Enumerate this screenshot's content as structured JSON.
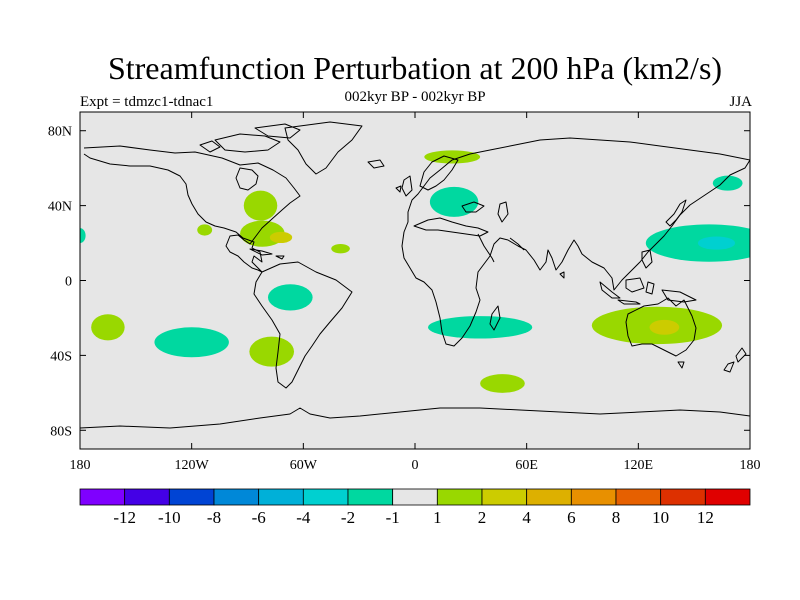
{
  "title": "Streamfunction Perturbation at 200 hPa (km2/s)",
  "subtitle": "002kyr BP - 002kyr BP",
  "left_label": "Expt = tdmzc1-tdnac1",
  "right_label": "JJA",
  "map": {
    "projection": "cylindrical-equidistant",
    "lon_range": [
      -180,
      180
    ],
    "lat_range": [
      -90,
      90
    ],
    "background_color": "#e6e6e6",
    "x_ticks": [
      {
        "lon": -180,
        "label": "180"
      },
      {
        "lon": -120,
        "label": "120W"
      },
      {
        "lon": -60,
        "label": "60W"
      },
      {
        "lon": 0,
        "label": "0"
      },
      {
        "lon": 60,
        "label": "60E"
      },
      {
        "lon": 120,
        "label": "120E"
      },
      {
        "lon": 180,
        "label": "180"
      }
    ],
    "y_ticks": [
      {
        "lat": 80,
        "label": "80N"
      },
      {
        "lat": 40,
        "label": "40N"
      },
      {
        "lat": 0,
        "label": "0"
      },
      {
        "lat": -40,
        "label": "40S"
      },
      {
        "lat": -80,
        "label": "80S"
      }
    ],
    "anomalies": [
      {
        "name": "north-atlantic-positive",
        "lon": -83,
        "lat": 40,
        "rlon": 9,
        "rlat": 8,
        "level": "1 to 2"
      },
      {
        "name": "gulf-positive",
        "lon": -82,
        "lat": 25,
        "rlon": 12,
        "rlat": 7,
        "level": "1 to 2"
      },
      {
        "name": "gulf-positive-small",
        "lon": -72,
        "lat": 23,
        "rlon": 6,
        "rlat": 3,
        "level": "2 to 4"
      },
      {
        "name": "pacific-positive-small",
        "lon": -113,
        "lat": 27,
        "rlon": 4,
        "rlat": 3,
        "level": "1 to 2"
      },
      {
        "name": "atlantic-positive-small",
        "lon": -40,
        "lat": 17,
        "rlon": 5,
        "rlat": 2.5,
        "level": "1 to 2"
      },
      {
        "name": "arctic-europe-positive",
        "lon": 20,
        "lat": 66,
        "rlon": 15,
        "rlat": 3.5,
        "level": "1 to 2"
      },
      {
        "name": "mediterranean-negative",
        "lon": 21,
        "lat": 42,
        "rlon": 13,
        "rlat": 8,
        "level": "-2 to -1"
      },
      {
        "name": "south-america-negative",
        "lon": -67,
        "lat": -9,
        "rlon": 12,
        "rlat": 7,
        "level": "-2 to -1"
      },
      {
        "name": "south-pacific-positive",
        "lon": -165,
        "lat": -25,
        "rlon": 9,
        "rlat": 7,
        "level": "1 to 2"
      },
      {
        "name": "south-pacific-negative",
        "lon": -120,
        "lat": -33,
        "rlon": 20,
        "rlat": 8,
        "level": "-2 to -1"
      },
      {
        "name": "south-america-positive",
        "lon": -77,
        "lat": -38,
        "rlon": 12,
        "rlat": 8,
        "level": "1 to 2"
      },
      {
        "name": "south-africa-negative",
        "lon": 35,
        "lat": -25,
        "rlon": 28,
        "rlat": 6,
        "level": "-2 to -1"
      },
      {
        "name": "southern-ocean-positive",
        "lon": 47,
        "lat": -55,
        "rlon": 12,
        "rlat": 5,
        "level": "1 to 2"
      },
      {
        "name": "australia-positive",
        "lon": 130,
        "lat": -24,
        "rlon": 35,
        "rlat": 10,
        "level": "1 to 2"
      },
      {
        "name": "australia-positive-core",
        "lon": 134,
        "lat": -25,
        "rlon": 8,
        "rlat": 4,
        "level": "2 to 4"
      },
      {
        "name": "west-pacific-negative",
        "lon": 158,
        "lat": 20,
        "rlon": 34,
        "rlat": 10,
        "level": "-2 to -1"
      },
      {
        "name": "west-pacific-negative-core",
        "lon": 162,
        "lat": 20,
        "rlon": 10,
        "rlat": 3.5,
        "level": "-4 to -2"
      },
      {
        "name": "kamchatka-negative",
        "lon": 168,
        "lat": 52,
        "rlon": 8,
        "rlat": 4,
        "level": "-2 to -1"
      },
      {
        "name": "dateline-negative",
        "lon": -180,
        "lat": 24,
        "rlon": 3,
        "rlat": 4,
        "level": "-2 to -1"
      }
    ]
  },
  "colorbar": {
    "colors": [
      "#7f00ff",
      "#4400e6",
      "#0044d4",
      "#0088d8",
      "#00b0d8",
      "#00d0d0",
      "#00d8a0",
      "#e6e6e6",
      "#99d800",
      "#cccc00",
      "#ddb000",
      "#e89000",
      "#e66000",
      "#dd3000",
      "#e00000"
    ],
    "labels": [
      "-12",
      "-10",
      "-8",
      "-6",
      "-4",
      "-2",
      "-1",
      "1",
      "2",
      "4",
      "6",
      "8",
      "10",
      "12"
    ]
  }
}
